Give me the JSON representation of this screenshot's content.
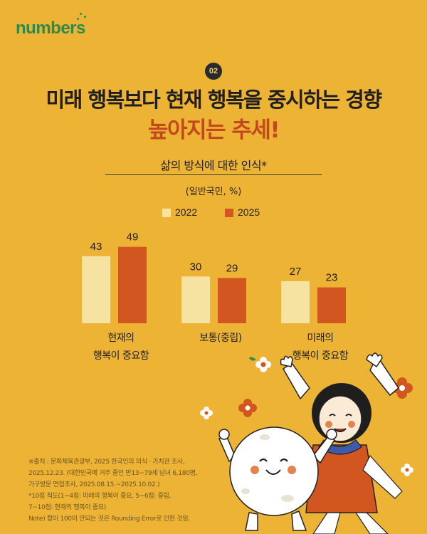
{
  "brand": {
    "logo_text": "numbers"
  },
  "badge": "02",
  "headline": {
    "line1": "미래 행복보다 현재 행복을 중시하는 경향",
    "line2": "높아지는 추세!"
  },
  "chart_data": {
    "type": "bar",
    "title": "삶의 방식에 대한 인식*",
    "unit": "(일반국민, %)",
    "categories": [
      "현재의 행복이 중요함",
      "보통(중립)",
      "미래의 행복이 중요함"
    ],
    "category_lines": [
      [
        "현재의",
        "행복이 중요함"
      ],
      [
        "보통(중립)"
      ],
      [
        "미래의",
        "행복이 중요함"
      ]
    ],
    "series": [
      {
        "name": "2022",
        "values": [
          43,
          30,
          27
        ],
        "color": "#F6E3A1"
      },
      {
        "name": "2025",
        "values": [
          49,
          29,
          23
        ],
        "color": "#D2561F"
      }
    ],
    "ylim": [
      0,
      50
    ],
    "grid": false,
    "legend": "top-center"
  },
  "source_notes": [
    "※출처 : 문화체육관광부, 2025 한국인의 의식 · 가치관 조사,",
    "2025.12.23. (대한민국에 거주 중인 만13~79세 남녀 6,180명,",
    "가구방문 면접조사, 2025.08.15.~2025.10.02.)",
    "*10점 척도(1~4점: 미래의 행복이 중요, 5~6점: 중립,",
    "7~10점: 현재의 행복이 중요)",
    "Note) 합이 100이 안되는 것은 Rounding Error로 인한 것임."
  ],
  "colors": {
    "background": "#EDB335",
    "accent": "#C4481E",
    "logo": "#2F8A4A"
  }
}
